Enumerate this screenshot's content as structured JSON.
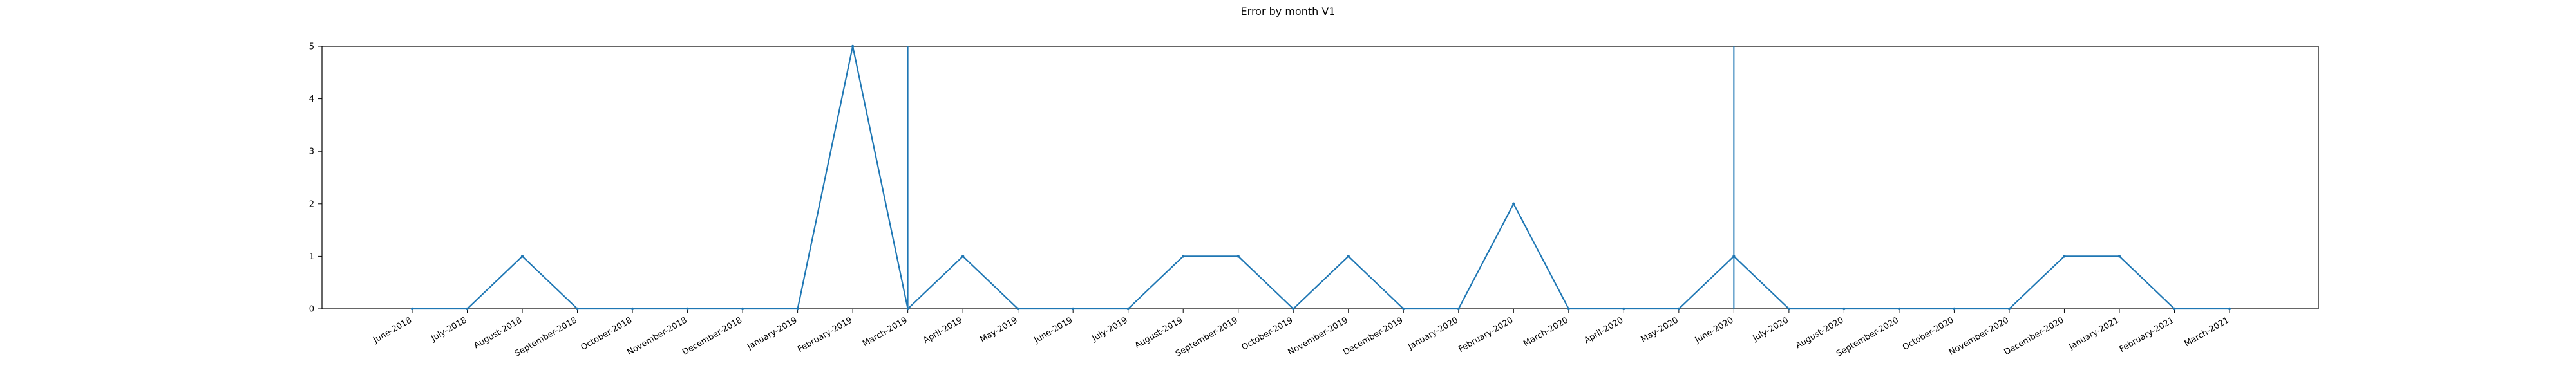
{
  "chart_data": {
    "type": "line",
    "title": "Error by month V1",
    "xlabel": "",
    "ylabel": "",
    "ylim": [
      0,
      5
    ],
    "yticks": [
      0,
      1,
      2,
      3,
      4,
      5
    ],
    "grid": false,
    "categories": [
      "June-2018",
      "July-2018",
      "August-2018",
      "September-2018",
      "October-2018",
      "November-2018",
      "December-2018",
      "January-2019",
      "February-2019",
      "March-2019",
      "April-2019",
      "May-2019",
      "June-2019",
      "July-2019",
      "August-2019",
      "September-2019",
      "October-2019",
      "November-2019",
      "December-2019",
      "January-2020",
      "February-2020",
      "March-2020",
      "April-2020",
      "May-2020",
      "June-2020",
      "July-2020",
      "August-2020",
      "September-2020",
      "October-2020",
      "November-2020",
      "December-2020",
      "January-2021",
      "February-2021",
      "March-2021"
    ],
    "series": [
      {
        "values": [
          0,
          0,
          1,
          0,
          0,
          0,
          0,
          0,
          5,
          0,
          1,
          0,
          0,
          0,
          1,
          1,
          0,
          1,
          0,
          0,
          2,
          0,
          0,
          0,
          1,
          0,
          0,
          0,
          0,
          0,
          1,
          1,
          0,
          0
        ],
        "color": "#1f77b4"
      }
    ],
    "vertical_lines": [
      {
        "x": "March-2019",
        "color": "#1f77b4"
      },
      {
        "x": "June-2020",
        "color": "#1f77b4"
      }
    ]
  }
}
